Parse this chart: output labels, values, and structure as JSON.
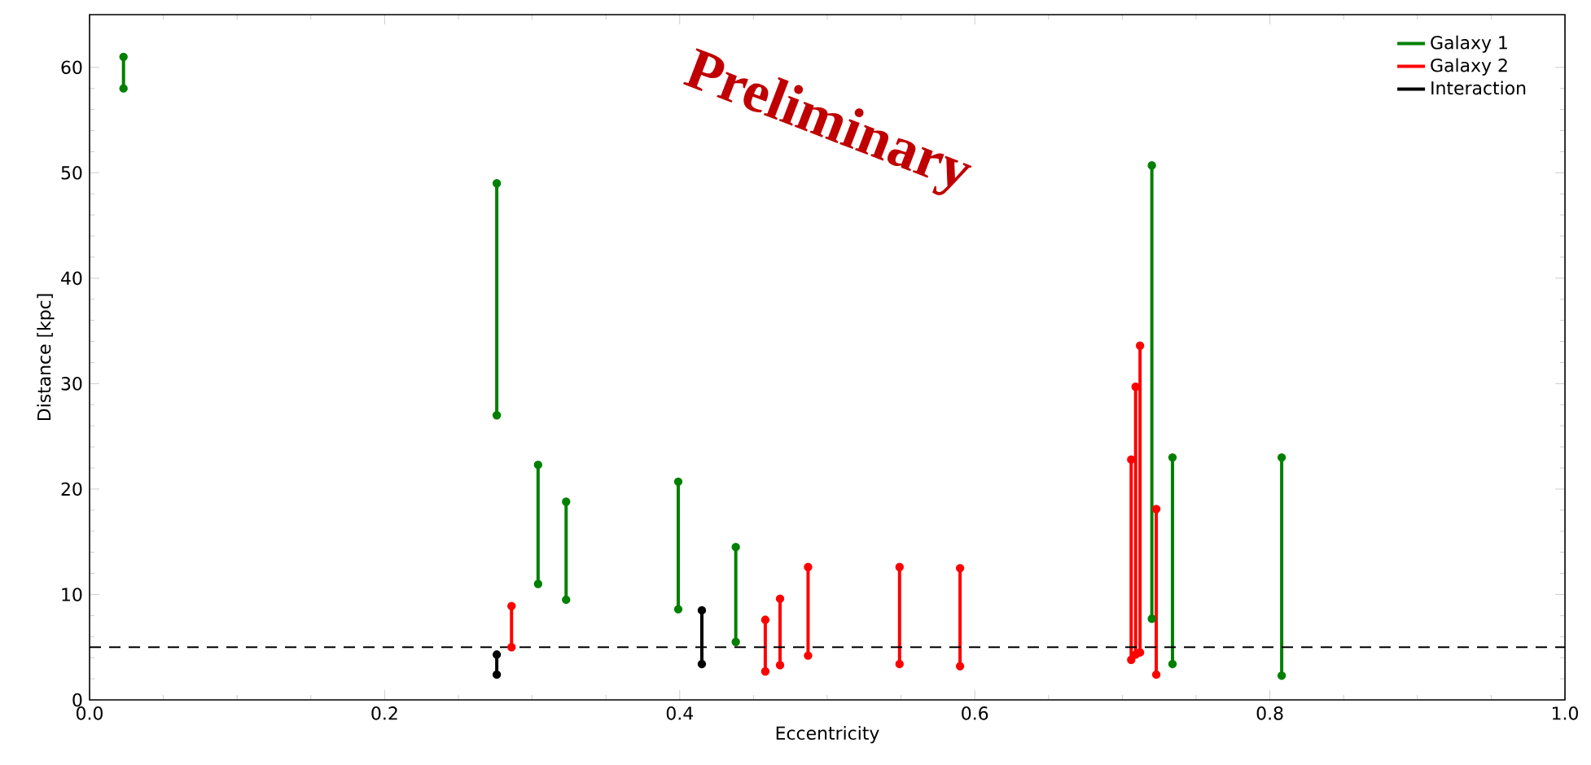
{
  "chart_data": {
    "type": "line",
    "xlabel": "Eccentricity",
    "ylabel": "Distance [kpc]",
    "annotations": [
      "Preliminary"
    ],
    "series": [
      {
        "name": "Galaxy 1",
        "color": "#008000",
        "x": [
          0.023,
          0.023
        ],
        "values": [
          61,
          58
        ]
      },
      {
        "color": "#008000",
        "x": [
          0.276,
          0.276
        ],
        "values": [
          49,
          27
        ]
      },
      {
        "color": "#008000",
        "x": [
          0.304,
          0.304
        ],
        "values": [
          22.3,
          11
        ]
      },
      {
        "color": "#008000",
        "x": [
          0.323,
          0.323
        ],
        "values": [
          18.8,
          9.5
        ]
      },
      {
        "color": "#008000",
        "x": [
          0.399,
          0.399
        ],
        "values": [
          8.6,
          20.7
        ]
      },
      {
        "color": "#008000",
        "x": [
          0.438,
          0.438
        ],
        "values": [
          14.5,
          5.5
        ]
      },
      {
        "color": "#008000",
        "x": [
          0.72,
          0.72
        ],
        "values": [
          50.7,
          7.7
        ]
      },
      {
        "color": "#008000",
        "x": [
          0.734,
          0.734
        ],
        "values": [
          23,
          3.4
        ]
      },
      {
        "color": "#008000",
        "x": [
          0.808,
          0.808
        ],
        "values": [
          23,
          2.3
        ]
      },
      {
        "name": "Galaxy 2",
        "color": "#ff0000",
        "x": [
          0.286,
          0.286
        ],
        "values": [
          8.9,
          5
        ]
      },
      {
        "color": "#ff0000",
        "x": [
          0.458,
          0.458
        ],
        "values": [
          7.6,
          2.7
        ]
      },
      {
        "color": "#ff0000",
        "x": [
          0.468,
          0.468
        ],
        "values": [
          9.6,
          3.3
        ]
      },
      {
        "color": "#ff0000",
        "x": [
          0.487,
          0.487
        ],
        "values": [
          12.6,
          4.2
        ]
      },
      {
        "color": "#ff0000",
        "x": [
          0.549,
          0.549
        ],
        "values": [
          12.6,
          3.4
        ]
      },
      {
        "color": "#ff0000",
        "x": [
          0.59,
          0.59
        ],
        "values": [
          12.5,
          3.2
        ]
      },
      {
        "color": "#ff0000",
        "x": [
          0.706,
          0.706
        ],
        "values": [
          22.8,
          3.8
        ]
      },
      {
        "color": "#ff0000",
        "x": [
          0.709,
          0.709
        ],
        "values": [
          29.7,
          4.3
        ]
      },
      {
        "color": "#ff0000",
        "x": [
          0.712,
          0.712
        ],
        "values": [
          4.5,
          33.6
        ]
      },
      {
        "color": "#ff0000",
        "x": [
          0.723,
          0.723
        ],
        "values": [
          18.1,
          2.4
        ]
      },
      {
        "name": "Interaction",
        "color": "#000000",
        "x": [
          0.276,
          0.276
        ],
        "values": [
          4.3,
          2.4
        ]
      },
      {
        "color": "#000000",
        "x": [
          0.415,
          0.415
        ],
        "values": [
          8.5,
          3.4
        ]
      }
    ],
    "marker": "circle",
    "line_style": "solid",
    "legend": "top right",
    "ref_lines": [
      {
        "axis": "y",
        "value": 5,
        "color": "#000000",
        "line_style": "dashed"
      }
    ],
    "xlim": [
      0,
      1
    ],
    "ylim": [
      0,
      65
    ],
    "xticks": [
      {
        "value": 0,
        "label": "0.0"
      },
      {
        "value": 0.2,
        "label": "0.2"
      },
      {
        "value": 0.4,
        "label": "0.4"
      },
      {
        "value": 0.6,
        "label": "0.6"
      },
      {
        "value": 0.8,
        "label": "0.8"
      },
      {
        "value": 1,
        "label": "1.0"
      }
    ],
    "yticks": [
      0,
      10,
      20,
      30,
      40,
      50,
      60
    ]
  }
}
